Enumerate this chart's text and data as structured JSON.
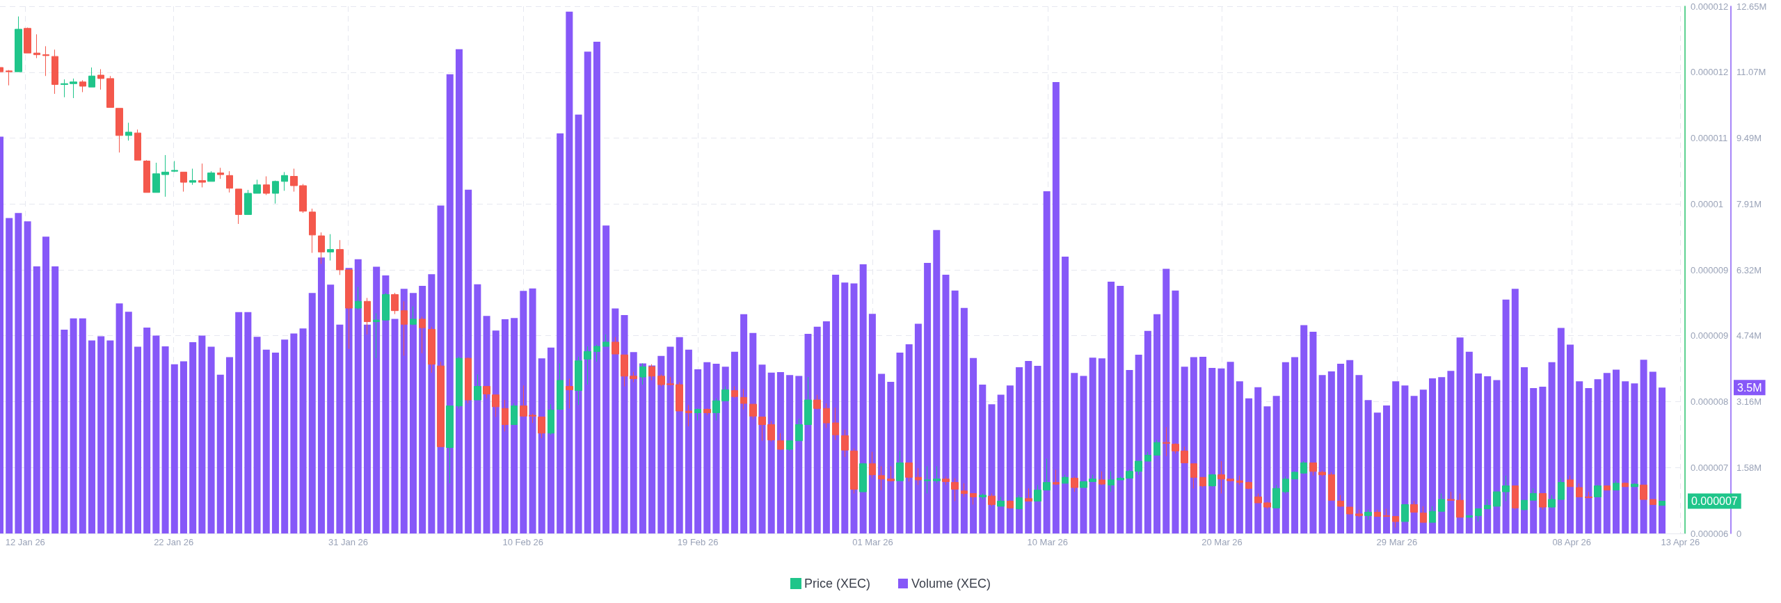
{
  "chart_data": {
    "type": "candlestick",
    "legend": "bottom",
    "grid": true,
    "x": [
      "--01-12T12:00",
      "--01-13T00:00",
      "--01-13T12:00",
      "--01-14T00:00",
      "--01-14T12:00",
      "--01-15T00:00",
      "--01-15T12:00",
      "--01-16T00:00",
      "--01-16T12:00",
      "--01-17T00:00",
      "--01-17T12:00",
      "--01-18T00:00",
      "--01-18T12:00",
      "--01-19T00:00",
      "--01-19T12:00",
      "--01-20T00:00",
      "--01-20T12:00",
      "--01-21T00:00",
      "--01-21T12:00",
      "--01-22T00:00",
      "--01-22T12:00",
      "--01-23T00:00",
      "--01-23T12:00",
      "--01-24T00:00",
      "--01-24T12:00",
      "--01-25T00:00",
      "--01-25T12:00",
      "--01-26T00:00",
      "--01-26T12:00",
      "--01-27T00:00",
      "--01-27T12:00",
      "--01-28T00:00",
      "--01-28T12:00",
      "--01-29T00:00",
      "--01-29T12:00",
      "--01-30T00:00",
      "--01-30T12:00",
      "--01-31T00:00",
      "--01-31T12:00",
      "--02-01T00:00",
      "--02-01T12:00",
      "--02-02T00:00",
      "--02-02T12:00",
      "--02-03T00:00",
      "--02-03T12:00",
      "--02-04T00:00",
      "--02-04T12:00",
      "--02-05T00:00",
      "--02-05T12:00",
      "--02-06T00:00",
      "--02-06T12:00",
      "--02-07T00:00",
      "--02-07T12:00",
      "--02-08T00:00",
      "--02-08T12:00",
      "--02-09T00:00",
      "--02-09T12:00",
      "--02-10T00:00",
      "--02-10T12:00",
      "--02-11T00:00",
      "--02-11T12:00",
      "--02-12T00:00",
      "--02-12T12:00",
      "--02-13T00:00",
      "--02-13T12:00",
      "--02-14T00:00",
      "--02-14T12:00",
      "--02-15T00:00",
      "--02-15T12:00",
      "--02-16T00:00",
      "--02-16T12:00",
      "--02-17T00:00",
      "--02-17T12:00",
      "--02-18T00:00",
      "--02-18T12:00",
      "--02-19T00:00",
      "--02-19T12:00",
      "--02-20T00:00",
      "--02-20T12:00",
      "--02-21T00:00",
      "--02-21T12:00",
      "--02-22T00:00",
      "--02-22T12:00",
      "--02-23T00:00",
      "--02-23T12:00",
      "--02-24T00:00",
      "--02-24T12:00",
      "--02-25T00:00",
      "--02-25T12:00",
      "--02-26T00:00",
      "--02-26T12:00",
      "--02-27T00:00",
      "--02-27T12:00",
      "--02-28T00:00",
      "--02-28T12:00",
      "--03-01T00:00",
      "--03-01T12:00",
      "--03-02T00:00",
      "--03-02T12:00",
      "--03-03T00:00",
      "--03-03T12:00",
      "--03-04T00:00",
      "--03-04T12:00",
      "--03-05T00:00",
      "--03-05T12:00",
      "--03-06T00:00",
      "--03-06T12:00",
      "--03-07T00:00",
      "--03-07T12:00",
      "--03-08T00:00",
      "--03-08T12:00",
      "--03-09T00:00",
      "--03-09T12:00",
      "--03-10T00:00",
      "--03-10T12:00",
      "--03-11T00:00",
      "--03-11T12:00",
      "--03-12T00:00",
      "--03-12T12:00",
      "--03-13T00:00",
      "--03-13T12:00",
      "--03-14T00:00",
      "--03-14T12:00",
      "--03-15T00:00",
      "--03-15T12:00",
      "--03-16T00:00",
      "--03-16T12:00",
      "--03-17T00:00",
      "--03-17T12:00",
      "--03-18T00:00",
      "--03-18T12:00",
      "--03-19T00:00",
      "--03-19T12:00",
      "--03-20T00:00",
      "--03-20T12:00",
      "--03-21T00:00",
      "--03-21T12:00",
      "--03-22T00:00",
      "--03-22T12:00",
      "--03-23T00:00",
      "--03-23T12:00",
      "--03-24T00:00",
      "--03-24T12:00",
      "--03-25T00:00",
      "--03-25T12:00",
      "--03-26T00:00",
      "--03-26T12:00",
      "--03-27T00:00",
      "--03-27T12:00",
      "--03-28T00:00",
      "--03-28T12:00",
      "--03-29T00:00",
      "--03-29T12:00",
      "--03-30T00:00",
      "--03-30T12:00",
      "--03-31T00:00",
      "--03-31T12:00",
      "--04-01T00:00",
      "--04-01T12:00",
      "--04-02T00:00",
      "--04-02T12:00",
      "--04-03T00:00",
      "--04-03T12:00",
      "--04-04T00:00",
      "--04-04T12:00",
      "--04-05T00:00",
      "--04-05T12:00",
      "--04-06T00:00",
      "--04-06T12:00",
      "--04-07T00:00",
      "--04-07T12:00",
      "--04-08T00:00",
      "--04-08T12:00",
      "--04-09T00:00",
      "--04-09T12:00",
      "--04-10T00:00",
      "--04-10T12:00",
      "--04-11T00:00",
      "--04-11T12:00",
      "--04-12T00:00",
      "--04-12T12:00",
      "--04-13T00:00"
    ],
    "xlim": [
      "--01-12T12:00",
      "--04-14T06:00"
    ],
    "xticks": [
      {
        "value": "--01-13T21:00",
        "label": "12 Jan 26"
      },
      {
        "value": "--01-21T23:00",
        "label": "22 Jan 26"
      },
      {
        "value": "--01-31T11:00",
        "label": "31 Jan 26"
      },
      {
        "value": "--02-09T23:30",
        "label": "10 Feb 26"
      },
      {
        "value": "--02-19T12:00",
        "label": "19 Feb 26"
      },
      {
        "value": "--03-01T00:30",
        "label": "01 Mar 26"
      },
      {
        "value": "--03-10T13:00",
        "label": "10 Mar 26"
      },
      {
        "value": "--03-20T01:00",
        "label": "20 Mar 26"
      },
      {
        "value": "--03-29T13:30",
        "label": "29 Mar 26"
      },
      {
        "value": "--04-08T02:00",
        "label": "08 Apr 26"
      },
      {
        "value": "--04-14T00:00",
        "label": "13 Apr 26"
      }
    ],
    "ylim": [
      6.2e-06,
      1.24e-05
    ],
    "yticks": [
      {
        "value": 6.2e-06,
        "label": "0.000006"
      },
      {
        "value": 6.975e-06,
        "label": "0.000007"
      },
      {
        "value": 7.75e-06,
        "label": "0.000008"
      },
      {
        "value": 8.525e-06,
        "label": "0.000009"
      },
      {
        "value": 9.3e-06,
        "label": "0.000009"
      },
      {
        "value": 1.0075e-05,
        "label": "0.00001"
      },
      {
        "value": 1.085e-05,
        "label": "0.000011"
      },
      {
        "value": 1.1625e-05,
        "label": "0.000012"
      },
      {
        "value": 1.24e-05,
        "label": "0.000012"
      }
    ],
    "y2lim": [
      0,
      12650000
    ],
    "y2ticks": [
      0,
      {
        "value": 1581250,
        "label": "1.58M"
      },
      {
        "value": 3162500,
        "label": "3.16M"
      },
      {
        "value": 4743750,
        "label": "4.74M"
      },
      {
        "value": 6325000,
        "label": "6.32M"
      },
      {
        "value": 7906250,
        "label": "7.91M"
      },
      {
        "value": 9487500,
        "label": "9.49M"
      },
      {
        "value": 11068750,
        "label": "11.07M"
      },
      {
        "value": 12650000,
        "label": "12.65M"
      }
    ],
    "annotations": [
      "0.000007",
      "3.5M"
    ],
    "series": [
      {
        "name": "Price (XEC)",
        "color": "#1fc58a",
        "colors": [
          "#f4584c",
          "#f4584c",
          "#1fc58a",
          "#f4584c",
          "#f4584c",
          "#f4584c",
          "#f4584c",
          "#1fc58a",
          "#1fc58a",
          "#f4584c",
          "#1fc58a",
          "#f4584c",
          "#f4584c",
          "#f4584c",
          "#1fc58a",
          "#f4584c",
          "#f4584c",
          "#1fc58a",
          "#1fc58a",
          "#1fc58a",
          "#f4584c",
          "#1fc58a",
          "#f4584c",
          "#1fc58a",
          "#f4584c",
          "#f4584c",
          "#f4584c",
          "#1fc58a",
          "#1fc58a",
          "#f4584c",
          "#1fc58a",
          "#1fc58a",
          "#f4584c",
          "#f4584c",
          "#f4584c",
          "#f4584c",
          "#1fc58a",
          "#f4584c",
          "#f4584c",
          "#1fc58a",
          "#f4584c",
          "#1fc58a",
          "#1fc58a",
          "#f4584c",
          "#f4584c",
          "#1fc58a",
          "#f4584c",
          "#f4584c",
          "#f4584c",
          "#1fc58a",
          "#1fc58a",
          "#f4584c",
          "#1fc58a",
          "#f4584c",
          "#f4584c",
          "#f4584c",
          "#1fc58a",
          "#f4584c",
          "#f4584c",
          "#f4584c",
          "#1fc58a",
          "#1fc58a",
          "#f4584c",
          "#1fc58a",
          "#1fc58a",
          "#1fc58a",
          "#1fc58a",
          "#f4584c",
          "#f4584c",
          "#f4584c",
          "#1fc58a",
          "#f4584c",
          "#f4584c",
          "#f4584c",
          "#f4584c",
          "#f4584c",
          "#1fc58a",
          "#f4584c",
          "#1fc58a",
          "#1fc58a",
          "#f4584c",
          "#f4584c",
          "#f4584c",
          "#f4584c",
          "#f4584c",
          "#f4584c",
          "#1fc58a",
          "#1fc58a",
          "#1fc58a",
          "#f4584c",
          "#f4584c",
          "#f4584c",
          "#f4584c",
          "#f4584c",
          "#1fc58a",
          "#f4584c",
          "#f4584c",
          "#f4584c",
          "#1fc58a",
          "#f4584c",
          "#f4584c",
          "#1fc58a",
          "#1fc58a",
          "#f4584c",
          "#f4584c",
          "#f4584c",
          "#f4584c",
          "#1fc58a",
          "#f4584c",
          "#1fc58a",
          "#f4584c",
          "#1fc58a",
          "#f4584c",
          "#1fc58a",
          "#1fc58a",
          "#f4584c",
          "#1fc58a",
          "#f4584c",
          "#1fc58a",
          "#1fc58a",
          "#f4584c",
          "#1fc58a",
          "#1fc58a",
          "#1fc58a",
          "#1fc58a",
          "#1fc58a",
          "#1fc58a",
          "#f4584c",
          "#f4584c",
          "#f4584c",
          "#f4584c",
          "#f4584c",
          "#1fc58a",
          "#f4584c",
          "#f4584c",
          "#f4584c",
          "#f4584c",
          "#f4584c",
          "#f4584c",
          "#1fc58a",
          "#1fc58a",
          "#1fc58a",
          "#1fc58a",
          "#f4584c",
          "#f4584c",
          "#f4584c",
          "#f4584c",
          "#f4584c",
          "#f4584c",
          "#1fc58a",
          "#f4584c",
          "#f4584c",
          "#f4584c",
          "#1fc58a",
          "#f4584c",
          "#f4584c",
          "#1fc58a",
          "#1fc58a",
          "#f4584c",
          "#f4584c",
          "#1fc58a",
          "#1fc58a",
          "#1fc58a",
          "#1fc58a",
          "#1fc58a",
          "#f4584c",
          "#1fc58a",
          "#1fc58a",
          "#f4584c",
          "#1fc58a",
          "#1fc58a",
          "#f4584c",
          "#f4584c",
          "#f4584c",
          "#1fc58a",
          "#f4584c",
          "#1fc58a",
          "#f4584c",
          "#1fc58a",
          "#f4584c",
          "#f4584c",
          "#1fc58a"
        ],
        "ohlc": [
          [
            1.168e-05,
            1.17e-05,
            1.16e-05,
            1.163e-05
          ],
          [
            1.164e-05,
            1.165e-05,
            1.147e-05,
            1.163e-05
          ],
          [
            1.163e-05,
            1.228e-05,
            1.163e-05,
            1.213e-05
          ],
          [
            1.214e-05,
            1.215e-05,
            1.185e-05,
            1.185e-05
          ],
          [
            1.185e-05,
            1.207e-05,
            1.179e-05,
            1.183e-05
          ],
          [
            1.183e-05,
            1.193e-05,
            1.158e-05,
            1.182e-05
          ],
          [
            1.181e-05,
            1.189e-05,
            1.137e-05,
            1.148e-05
          ],
          [
            1.148e-05,
            1.154e-05,
            1.133e-05,
            1.149e-05
          ],
          [
            1.149e-05,
            1.155e-05,
            1.132e-05,
            1.151e-05
          ],
          [
            1.151e-05,
            1.153e-05,
            1.139e-05,
            1.146e-05
          ],
          [
            1.145e-05,
            1.168e-05,
            1.145e-05,
            1.158e-05
          ],
          [
            1.159e-05,
            1.166e-05,
            1.142e-05,
            1.155e-05
          ],
          [
            1.155e-05,
            1.158e-05,
            1.121e-05,
            1.121e-05
          ],
          [
            1.12e-05,
            1.12e-05,
            1.068e-05,
            1.088e-05
          ],
          [
            1.088e-05,
            1.103e-05,
            1.082e-05,
            1.092e-05
          ],
          [
            1.091e-05,
            1.095e-05,
            1.059e-05,
            1.059e-05
          ],
          [
            1.058e-05,
            1.059e-05,
            1.021e-05,
            1.021e-05
          ],
          [
            1.021e-05,
            1.056e-05,
            1.021e-05,
            1.043e-05
          ],
          [
            1.042e-05,
            1.065e-05,
            1.016e-05,
            1.045e-05
          ],
          [
            1.046e-05,
            1.058e-05,
            1.045e-05,
            1.047e-05
          ],
          [
            1.045e-05,
            1.045e-05,
            1.022e-05,
            1.033e-05
          ],
          [
            1.033e-05,
            1.049e-05,
            1.03e-05,
            1.035e-05
          ],
          [
            1.035e-05,
            1.055e-05,
            1.027e-05,
            1.033e-05
          ],
          [
            1.034e-05,
            1.046e-05,
            1.034e-05,
            1.044e-05
          ],
          [
            1.044e-05,
            1.05e-05,
            1.037e-05,
            1.042e-05
          ],
          [
            1.041e-05,
            1.046e-05,
            1.021e-05,
            1.026e-05
          ],
          [
            1.025e-05,
            1.025e-05,
            9.84e-06,
            9.95e-06
          ],
          [
            9.95e-06,
            1.024e-05,
            9.95e-06,
            1.02e-05
          ],
          [
            1.02e-05,
            1.036e-05,
            1.02e-05,
            1.03e-05
          ],
          [
            1.03e-05,
            1.04e-05,
            1.018e-05,
            1.02e-05
          ],
          [
            1.02e-05,
            1.035e-05,
            1.008e-05,
            1.034e-05
          ],
          [
            1.034e-05,
            1.045e-05,
            1.023e-05,
            1.041e-05
          ],
          [
            1.04e-05,
            1.049e-05,
            1.022e-05,
            1.029e-05
          ],
          [
            1.029e-05,
            1.031e-05,
            9.97e-06,
            9.99e-06
          ],
          [
            9.98e-06,
            1.002e-05,
            9.5e-06,
            9.71e-06
          ],
          [
            9.7e-06,
            9.74e-06,
            9.37e-06,
            9.51e-06
          ],
          [
            9.51e-06,
            9.72e-06,
            9.41e-06,
            9.54e-06
          ],
          [
            9.54e-06,
            9.65e-06,
            9.24e-06,
            9.3e-06
          ],
          [
            9.3e-06,
            9.3e-06,
            8.37e-06,
            8.85e-06
          ],
          [
            8.85e-06,
            9.1e-06,
            8.83e-06,
            8.93e-06
          ],
          [
            8.93e-06,
            8.97e-06,
            8.54e-06,
            8.69e-06
          ],
          [
            8.69e-06,
            8.79e-06,
            8.26e-06,
            8.71e-06
          ],
          [
            8.71e-06,
            9.03e-06,
            8.7e-06,
            9.01e-06
          ],
          [
            9.01e-06,
            9.03e-06,
            8.78e-06,
            8.82e-06
          ],
          [
            8.82e-06,
            8.93e-06,
            8.29e-06,
            8.66e-06
          ],
          [
            8.66e-06,
            8.87e-06,
            8.65e-06,
            8.72e-06
          ],
          [
            8.72e-06,
            8.75e-06,
            8.32e-06,
            8.62e-06
          ],
          [
            8.6e-06,
            8.63e-06,
            8.09e-06,
            8.19e-06
          ],
          [
            8.17e-06,
            8.22e-06,
            7.22e-06,
            7.22e-06
          ],
          [
            7.21e-06,
            7.7e-06,
            6.79e-06,
            7.7e-06
          ],
          [
            7.7e-06,
            8.28e-06,
            7.67e-06,
            8.26e-06
          ],
          [
            8.26e-06,
            8.27e-06,
            7.73e-06,
            7.77e-06
          ],
          [
            7.77e-06,
            8.07e-06,
            7.77e-06,
            7.93e-06
          ],
          [
            7.93e-06,
            7.93e-06,
            7.79e-06,
            7.84e-06
          ],
          [
            7.83e-06,
            7.83e-06,
            7.57e-06,
            7.69e-06
          ],
          [
            7.67e-06,
            7.77e-06,
            7.4e-06,
            7.48e-06
          ],
          [
            7.48e-06,
            7.73e-06,
            7.48e-06,
            7.7e-06
          ],
          [
            7.7e-06,
            7.94e-06,
            7.57e-06,
            7.58e-06
          ],
          [
            7.59e-06,
            7.61e-06,
            7.5e-06,
            7.58e-06
          ],
          [
            7.57e-06,
            7.57e-06,
            7.32e-06,
            7.38e-06
          ],
          [
            7.38e-06,
            7.72e-06,
            7.36e-06,
            7.65e-06
          ],
          [
            7.66e-06,
            8.2e-06,
            7.65e-06,
            8e-06
          ],
          [
            7.93e-06,
            8.02e-06,
            7.67e-06,
            7.89e-06
          ],
          [
            7.88e-06,
            8.28e-06,
            7.71e-06,
            8.23e-06
          ],
          [
            8.25e-06,
            8.4e-06,
            7.95e-06,
            8.34e-06
          ],
          [
            8.34e-06,
            8.42e-06,
            8.22e-06,
            8.4e-06
          ],
          [
            8.4e-06,
            8.54e-06,
            8.4e-06,
            8.45e-06
          ],
          [
            8.45e-06,
            8.51e-06,
            8.31e-06,
            8.31e-06
          ],
          [
            8.3e-06,
            8.3e-06,
            7.93e-06,
            8.05e-06
          ],
          [
            8.05e-06,
            8.1e-06,
            7.98e-06,
            8.02e-06
          ],
          [
            8.04e-06,
            8.2e-06,
            7.95e-06,
            8.16e-06
          ],
          [
            8.16e-06,
            8.19e-06,
            8e-06,
            8.05e-06
          ],
          [
            8.05e-06,
            8.07e-06,
            7.93e-06,
            7.95e-06
          ],
          [
            7.96e-06,
            8.04e-06,
            7.94e-06,
            7.95e-06
          ],
          [
            7.95e-06,
            7.98e-06,
            7.64e-06,
            7.64e-06
          ],
          [
            7.64e-06,
            7.71e-06,
            7.46e-06,
            7.62e-06
          ],
          [
            7.62e-06,
            7.67e-06,
            7.53e-06,
            7.66e-06
          ],
          [
            7.66e-06,
            7.67e-06,
            7.59e-06,
            7.62e-06
          ],
          [
            7.62e-06,
            7.79e-06,
            7.53e-06,
            7.76e-06
          ],
          [
            7.76e-06,
            7.93e-06,
            7.76e-06,
            7.89e-06
          ],
          [
            7.88e-06,
            7.93e-06,
            7.79e-06,
            7.81e-06
          ],
          [
            7.8e-06,
            7.9e-06,
            7.66e-06,
            7.73e-06
          ],
          [
            7.72e-06,
            7.72e-06,
            7.55e-06,
            7.58e-06
          ],
          [
            7.57e-06,
            7.57e-06,
            7.29e-06,
            7.48e-06
          ],
          [
            7.48e-06,
            7.52e-06,
            7.28e-06,
            7.3e-06
          ],
          [
            7.29e-06,
            7.38e-06,
            7.18e-06,
            7.19e-06
          ],
          [
            7.19e-06,
            7.29e-06,
            7.17e-06,
            7.29e-06
          ],
          [
            7.29e-06,
            7.55e-06,
            7.29e-06,
            7.48e-06
          ],
          [
            7.48e-06,
            8.04e-06,
            7.48e-06,
            7.77e-06
          ],
          [
            7.77e-06,
            7.83e-06,
            7.66e-06,
            7.67e-06
          ],
          [
            7.67e-06,
            7.73e-06,
            7.44e-06,
            7.5e-06
          ],
          [
            7.5e-06,
            7.68e-06,
            7.3e-06,
            7.36e-06
          ],
          [
            7.35e-06,
            7.42e-06,
            7.1e-06,
            7.18e-06
          ],
          [
            7.17e-06,
            7.2e-06,
            6.67e-06,
            6.72e-06
          ],
          [
            6.69e-06,
            7.03e-06,
            6.69e-06,
            7.02e-06
          ],
          [
            7.02e-06,
            7.16e-06,
            6.85e-06,
            6.89e-06
          ],
          [
            6.88e-06,
            6.99e-06,
            6.71e-06,
            6.84e-06
          ],
          [
            6.84e-06,
            6.99e-06,
            6.81e-06,
            6.82e-06
          ],
          [
            6.82e-06,
            7.17e-06,
            6.82e-06,
            7.03e-06
          ],
          [
            7.03e-06,
            7.03e-06,
            6.81e-06,
            6.86e-06
          ],
          [
            6.86e-06,
            6.97e-06,
            6.77e-06,
            6.83e-06
          ],
          [
            6.82e-06,
            6.99e-06,
            6.67e-06,
            6.83e-06
          ],
          [
            6.82e-06,
            6.99e-06,
            6.79e-06,
            6.84e-06
          ],
          [
            6.84e-06,
            6.87e-06,
            6.77e-06,
            6.81e-06
          ],
          [
            6.8e-06,
            6.85e-06,
            6.58e-06,
            6.72e-06
          ],
          [
            6.7e-06,
            6.79e-06,
            6.63e-06,
            6.67e-06
          ],
          [
            6.67e-06,
            6.67e-06,
            6.54e-06,
            6.63e-06
          ],
          [
            6.63e-06,
            6.67e-06,
            6.6e-06,
            6.65e-06
          ],
          [
            6.64e-06,
            6.67e-06,
            6.52e-06,
            6.54e-06
          ],
          [
            6.52e-06,
            6.63e-06,
            6.52e-06,
            6.58e-06
          ],
          [
            6.58e-06,
            6.59e-06,
            6.49e-06,
            6.5e-06
          ],
          [
            6.49e-06,
            6.65e-06,
            6.48e-06,
            6.62e-06
          ],
          [
            6.61e-06,
            6.73e-06,
            6.58e-06,
            6.58e-06
          ],
          [
            6.58e-06,
            6.77e-06,
            6.58e-06,
            6.71e-06
          ],
          [
            6.71e-06,
            7.08e-06,
            6.71e-06,
            6.8e-06
          ],
          [
            6.8e-06,
            6.95e-06,
            6.77e-06,
            6.78e-06
          ],
          [
            6.79e-06,
            6.89e-06,
            6.79e-06,
            6.86e-06
          ],
          [
            6.85e-06,
            6.87e-06,
            6.69e-06,
            6.74e-06
          ],
          [
            6.74e-06,
            6.81e-06,
            6.74e-06,
            6.81e-06
          ],
          [
            6.81e-06,
            6.89e-06,
            6.81e-06,
            6.84e-06
          ],
          [
            6.83e-06,
            6.93e-06,
            6.77e-06,
            6.78e-06
          ],
          [
            6.77e-06,
            6.93e-06,
            6.69e-06,
            6.83e-06
          ],
          [
            6.83e-06,
            6.87e-06,
            6.83e-06,
            6.85e-06
          ],
          [
            6.85e-06,
            6.95e-06,
            6.85e-06,
            6.93e-06
          ],
          [
            6.93e-06,
            7.05e-06,
            6.89e-06,
            7.05e-06
          ],
          [
            7.05e-06,
            7.16e-06,
            7.05e-06,
            7.12e-06
          ],
          [
            7.12e-06,
            7.3e-06,
            7.12e-06,
            7.27e-06
          ],
          [
            7.27e-06,
            7.45e-06,
            7.11e-06,
            7.26e-06
          ],
          [
            7.25e-06,
            7.26e-06,
            7.14e-06,
            7.17e-06
          ],
          [
            7.17e-06,
            7.22e-06,
            7.03e-06,
            7.03e-06
          ],
          [
            7.02e-06,
            7.02e-06,
            6.73e-06,
            6.86e-06
          ],
          [
            6.86e-06,
            6.86e-06,
            6.74e-06,
            6.76e-06
          ],
          [
            6.76e-06,
            6.9e-06,
            6.75e-06,
            6.89e-06
          ],
          [
            6.89e-06,
            7.05e-06,
            6.67e-06,
            6.84e-06
          ],
          [
            6.84e-06,
            6.84e-06,
            6.81e-06,
            6.82e-06
          ],
          [
            6.82e-06,
            6.88e-06,
            6.77e-06,
            6.8e-06
          ],
          [
            6.8e-06,
            6.81e-06,
            6.72e-06,
            6.73e-06
          ],
          [
            6.63e-06,
            6.67e-06,
            6.56e-06,
            6.56e-06
          ],
          [
            6.56e-06,
            6.57e-06,
            6.49e-06,
            6.51e-06
          ],
          [
            6.5e-06,
            6.77e-06,
            6.5e-06,
            6.73e-06
          ],
          [
            6.69e-06,
            6.87e-06,
            6.67e-06,
            6.84e-06
          ],
          [
            6.84e-06,
            6.93e-06,
            6.84e-06,
            6.92e-06
          ],
          [
            6.91e-06,
            7.05e-06,
            6.9e-06,
            7.03e-06
          ],
          [
            7.03e-06,
            7.03e-06,
            6.88e-06,
            6.93e-06
          ],
          [
            6.92e-06,
            6.94e-06,
            6.87e-06,
            6.89e-06
          ],
          [
            6.89e-06,
            6.92e-06,
            6.59e-06,
            6.59e-06
          ],
          [
            6.58e-06,
            6.65e-06,
            6.51e-06,
            6.52e-06
          ],
          [
            6.51e-06,
            6.51e-06,
            6.42e-06,
            6.43e-06
          ],
          [
            6.43e-06,
            6.48e-06,
            6.39e-06,
            6.41e-06
          ],
          [
            6.41e-06,
            6.48e-06,
            6.36e-06,
            6.45e-06
          ],
          [
            6.45e-06,
            6.48e-06,
            6.4e-06,
            6.4e-06
          ],
          [
            6.41e-06,
            6.49e-06,
            6.4e-06,
            6.4e-06
          ],
          [
            6.4e-06,
            6.4e-06,
            6.27e-06,
            6.34e-06
          ],
          [
            6.34e-06,
            6.54e-06,
            6.34e-06,
            6.54e-06
          ],
          [
            6.54e-06,
            6.58e-06,
            6.45e-06,
            6.45e-06
          ],
          [
            6.44e-06,
            6.52e-06,
            6.33e-06,
            6.33e-06
          ],
          [
            6.33e-06,
            6.52e-06,
            6.33e-06,
            6.46e-06
          ],
          [
            6.46e-06,
            6.67e-06,
            6.46e-06,
            6.6e-06
          ],
          [
            6.6e-06,
            6.69e-06,
            6.59e-06,
            6.59e-06
          ],
          [
            6.59e-06,
            6.67e-06,
            6.39e-06,
            6.39e-06
          ],
          [
            6.39e-06,
            6.41e-06,
            6.39e-06,
            6.41e-06
          ],
          [
            6.41e-06,
            6.49e-06,
            6.34e-06,
            6.49e-06
          ],
          [
            6.49e-06,
            6.6e-06,
            6.49e-06,
            6.53e-06
          ],
          [
            6.52e-06,
            6.69e-06,
            6.52e-06,
            6.69e-06
          ],
          [
            6.69e-06,
            6.88e-06,
            6.58e-06,
            6.76e-06
          ],
          [
            6.76e-06,
            6.76e-06,
            6.48e-06,
            6.5e-06
          ],
          [
            6.48e-06,
            6.59e-06,
            6.47e-06,
            6.59e-06
          ],
          [
            6.59e-06,
            6.73e-06,
            6.59e-06,
            6.67e-06
          ],
          [
            6.67e-06,
            6.67e-06,
            6.48e-06,
            6.51e-06
          ],
          [
            6.51e-06,
            6.65e-06,
            6.5e-06,
            6.6e-06
          ],
          [
            6.6e-06,
            6.85e-06,
            6.6e-06,
            6.8e-06
          ],
          [
            6.83e-06,
            6.88e-06,
            6.75e-06,
            6.75e-06
          ],
          [
            6.74e-06,
            6.79e-06,
            6.63e-06,
            6.63e-06
          ],
          [
            6.63e-06,
            6.69e-06,
            6.62e-06,
            6.62e-06
          ],
          [
            6.63e-06,
            6.77e-06,
            6.63e-06,
            6.76e-06
          ],
          [
            6.76e-06,
            6.76e-06,
            6.71e-06,
            6.71e-06
          ],
          [
            6.71e-06,
            6.82e-06,
            6.71e-06,
            6.79e-06
          ],
          [
            6.79e-06,
            6.8e-06,
            6.75e-06,
            6.75e-06
          ],
          [
            6.75e-06,
            6.79e-06,
            6.75e-06,
            6.78e-06
          ],
          [
            6.77e-06,
            6.77e-06,
            6.6e-06,
            6.6e-06
          ],
          [
            6.6e-06,
            6.6e-06,
            6.54e-06,
            6.54e-06
          ],
          [
            6.53e-06,
            6.58e-06,
            6.53e-06,
            6.58e-06
          ]
        ]
      },
      {
        "type": "bar",
        "name": "Volume (XEC)",
        "axis": "y2",
        "color": "#8658f8",
        "values": [
          9520000,
          7570000,
          7690000,
          7490000,
          6410000,
          7120000,
          6410000,
          4890000,
          5160000,
          5160000,
          4630000,
          4730000,
          4630000,
          5520000,
          5320000,
          4480000,
          4940000,
          4750000,
          4490000,
          4060000,
          4130000,
          4590000,
          4750000,
          4480000,
          3810000,
          4230000,
          5310000,
          5310000,
          4720000,
          4410000,
          4340000,
          4650000,
          4800000,
          4920000,
          5770000,
          6620000,
          5970000,
          5010000,
          6370000,
          6580000,
          5010000,
          6400000,
          6190000,
          5150000,
          5870000,
          5770000,
          5940000,
          6220000,
          7870000,
          11020000,
          11620000,
          8250000,
          5980000,
          5220000,
          4870000,
          5140000,
          5170000,
          5820000,
          5880000,
          4200000,
          4460000,
          9600000,
          12520000,
          10050000,
          11560000,
          11800000,
          7390000,
          5400000,
          5240000,
          4350000,
          4080000,
          4030000,
          4260000,
          4480000,
          4710000,
          4410000,
          3940000,
          4110000,
          4070000,
          4000000,
          4360000,
          5260000,
          4810000,
          4050000,
          3860000,
          3870000,
          3800000,
          3780000,
          4790000,
          4960000,
          5090000,
          6210000,
          6020000,
          6000000,
          6460000,
          5270000,
          3830000,
          3640000,
          4340000,
          4540000,
          5030000,
          6490000,
          7280000,
          6210000,
          5830000,
          5410000,
          4210000,
          3570000,
          3100000,
          3330000,
          3550000,
          3990000,
          4140000,
          4020000,
          8210000,
          10830000,
          6640000,
          3850000,
          3780000,
          4220000,
          4200000,
          6040000,
          5940000,
          3920000,
          4290000,
          4860000,
          5260000,
          6350000,
          5830000,
          4000000,
          4230000,
          4240000,
          3970000,
          3960000,
          4120000,
          3650000,
          3240000,
          3510000,
          3050000,
          3300000,
          4110000,
          4230000,
          5000000,
          4840000,
          3800000,
          3890000,
          4070000,
          4160000,
          3800000,
          3200000,
          2900000,
          3070000,
          3650000,
          3550000,
          3300000,
          3450000,
          3720000,
          3750000,
          3900000,
          4700000,
          4360000,
          3840000,
          3770000,
          3680000,
          5610000,
          5870000,
          3990000,
          3490000,
          3520000,
          4110000,
          4930000,
          4530000,
          3650000,
          3490000,
          3700000,
          3850000,
          3930000,
          3650000,
          3600000,
          4170000,
          3880000,
          3500000
        ]
      }
    ]
  }
}
